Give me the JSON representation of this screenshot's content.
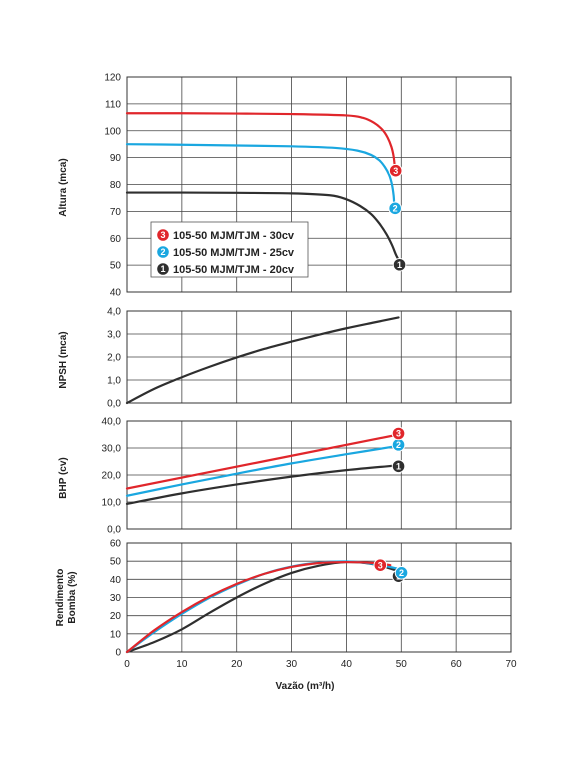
{
  "colors": {
    "s3": "#e0262b",
    "s2": "#1aa7e0",
    "s1": "#2f2f2f"
  },
  "chart_data": [
    {
      "id": "head",
      "type": "line",
      "ylabel": "Altura (mca)",
      "xlim": [
        0,
        70
      ],
      "ylim": [
        40,
        120
      ],
      "yticks": [
        "40",
        "50",
        "60",
        "70",
        "80",
        "90",
        "100",
        "110",
        "120"
      ],
      "legend_placement": "bottom-left",
      "series": [
        {
          "key": "s3",
          "badge": "3",
          "name": "105-50 MJM/TJM - 30cv",
          "x": [
            0,
            10,
            20,
            30,
            40,
            43,
            45,
            46.5,
            47.5,
            48.2,
            48.6,
            48.8
          ],
          "y": [
            106.5,
            106.5,
            106.4,
            106.2,
            105.7,
            104.8,
            103,
            100.5,
            97.5,
            94,
            90.5,
            87
          ]
        },
        {
          "key": "s2",
          "badge": "2",
          "name": "105-50 MJM/TJM - 25cv",
          "x": [
            0,
            10,
            20,
            30,
            38,
            42,
            44.5,
            46,
            47,
            47.8,
            48.3,
            48.6,
            48.7
          ],
          "y": [
            95,
            94.8,
            94.5,
            94.2,
            93.6,
            92.6,
            91,
            89,
            86.5,
            83.5,
            80,
            76,
            73
          ]
        },
        {
          "key": "s1",
          "badge": "1",
          "name": "105-50 MJM/TJM - 20cv",
          "x": [
            0,
            10,
            20,
            30,
            37,
            40,
            42.5,
            44.5,
            46,
            47.3,
            48.3,
            49,
            49.5
          ],
          "y": [
            77,
            77,
            76.9,
            76.7,
            76,
            74.5,
            72,
            69,
            65.5,
            61.5,
            57.5,
            54,
            52
          ]
        }
      ]
    },
    {
      "id": "npsh",
      "type": "line",
      "ylabel": "NPSH (mca)",
      "xlim": [
        0,
        70
      ],
      "ylim": [
        0,
        4
      ],
      "yticks": [
        "0,0",
        "1,0",
        "2,0",
        "3,0",
        "4,0"
      ],
      "series": [
        {
          "key": "s1",
          "x": [
            0,
            5,
            10,
            15,
            20,
            25,
            30,
            35,
            40,
            45,
            49.5
          ],
          "y": [
            0,
            0.62,
            1.12,
            1.57,
            1.98,
            2.35,
            2.67,
            2.97,
            3.25,
            3.5,
            3.72
          ]
        }
      ]
    },
    {
      "id": "bhp",
      "type": "line",
      "ylabel": "BHP (cv)",
      "xlim": [
        0,
        70
      ],
      "ylim": [
        0,
        40
      ],
      "yticks": [
        "0,0",
        "10,0",
        "20,0",
        "30,0",
        "40,0"
      ],
      "series": [
        {
          "key": "s3",
          "badge": "3",
          "x": [
            0,
            49.5
          ],
          "y": [
            15,
            35
          ]
        },
        {
          "key": "s2",
          "badge": "2",
          "x": [
            0,
            10,
            20,
            30,
            40,
            49.5
          ],
          "y": [
            12.3,
            16.5,
            20.5,
            24.3,
            27.7,
            30.8
          ]
        },
        {
          "key": "s1",
          "badge": "1",
          "x": [
            0,
            10,
            20,
            30,
            40,
            49.5
          ],
          "y": [
            9.3,
            13.2,
            16.5,
            19.4,
            21.8,
            23.6
          ]
        }
      ]
    },
    {
      "id": "efficiency",
      "type": "line",
      "ylabel": "Rendimento Bomba (%)",
      "ylabel_lines": [
        "Rendimento",
        "Bomba (%)"
      ],
      "xlim": [
        0,
        70
      ],
      "ylim": [
        0,
        60
      ],
      "yticks": [
        "0",
        "10",
        "20",
        "30",
        "40",
        "50",
        "60"
      ],
      "xlabel": "Vazão (m³/h)",
      "xticks": [
        "0",
        "10",
        "20",
        "30",
        "40",
        "50",
        "60",
        "70"
      ],
      "series": [
        {
          "key": "s3",
          "badge": "3",
          "x": [
            0,
            5,
            10,
            15,
            20,
            25,
            30,
            35,
            40,
            45,
            48
          ],
          "y": [
            0,
            12,
            22,
            30.5,
            37.5,
            43,
            46.8,
            49,
            49.5,
            49,
            47.8
          ]
        },
        {
          "key": "s2",
          "badge": "2",
          "x": [
            0,
            5,
            10,
            15,
            20,
            25,
            30,
            35,
            40,
            45,
            49.5
          ],
          "y": [
            0,
            11,
            21,
            29.8,
            37,
            43,
            47,
            49.2,
            49.8,
            48.5,
            45.8
          ]
        },
        {
          "key": "s1",
          "badge": "1",
          "x": [
            0,
            5,
            10,
            15,
            20,
            25,
            30,
            35,
            40,
            45,
            49.5
          ],
          "y": [
            0,
            5.5,
            12.5,
            21.5,
            30,
            37.5,
            43.5,
            47.5,
            49.5,
            48.3,
            44.5
          ]
        }
      ]
    }
  ]
}
